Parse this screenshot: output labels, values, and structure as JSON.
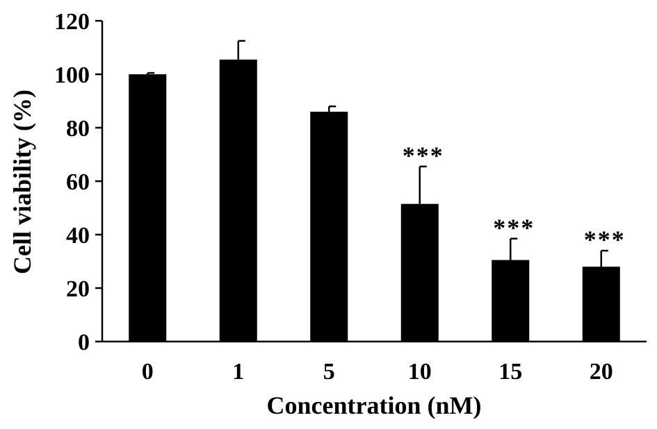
{
  "chart_data": {
    "type": "bar",
    "title": "",
    "xlabel": "Concentration (nM)",
    "ylabel": "Cell viability (%)",
    "categories": [
      "0",
      "1",
      "5",
      "10",
      "15",
      "20"
    ],
    "values": [
      100,
      105.5,
      86,
      51.5,
      30.5,
      28
    ],
    "errors": [
      0.5,
      7,
      2,
      14,
      8,
      6
    ],
    "significance": [
      "",
      "",
      "",
      "***",
      "***",
      "***"
    ],
    "ylim": [
      0,
      120
    ],
    "yticks": [
      "0",
      "20",
      "40",
      "60",
      "80",
      "100",
      "120"
    ],
    "grid": false,
    "bar_color": "#000000"
  }
}
